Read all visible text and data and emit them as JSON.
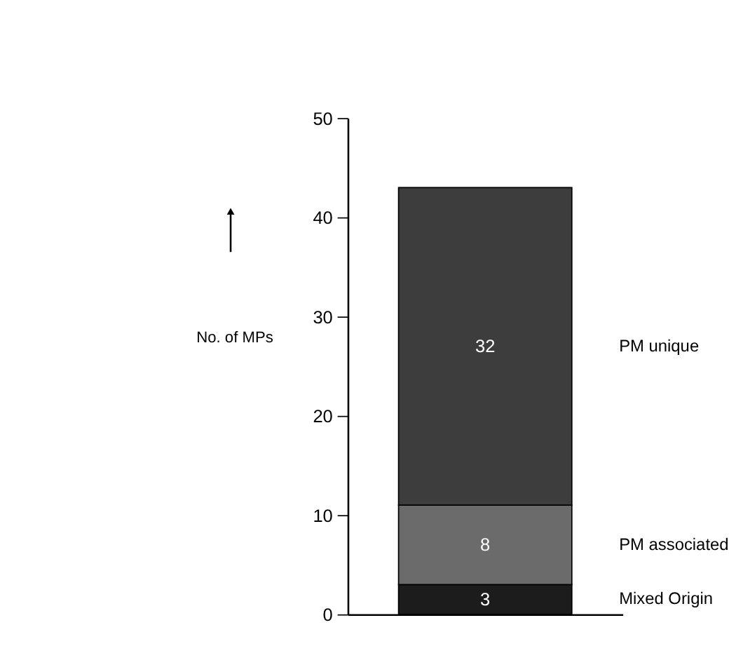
{
  "chart_data": {
    "type": "bar",
    "stacked": true,
    "categories": [
      null
    ],
    "ylabel": "No. of MPs",
    "ylim": [
      0,
      50
    ],
    "yticks": [
      0,
      10,
      20,
      30,
      40,
      50
    ],
    "grid": false,
    "tick_labels": "y",
    "data_labels": true,
    "series": [
      {
        "name": "Mixed Origin",
        "color": "#1c1c1c",
        "values": [
          3
        ]
      },
      {
        "name": "PM associated",
        "color": "#6b6b6b",
        "values": [
          8
        ]
      },
      {
        "name": "PM unique",
        "color": "#3d3d3d",
        "values": [
          32
        ]
      }
    ]
  }
}
